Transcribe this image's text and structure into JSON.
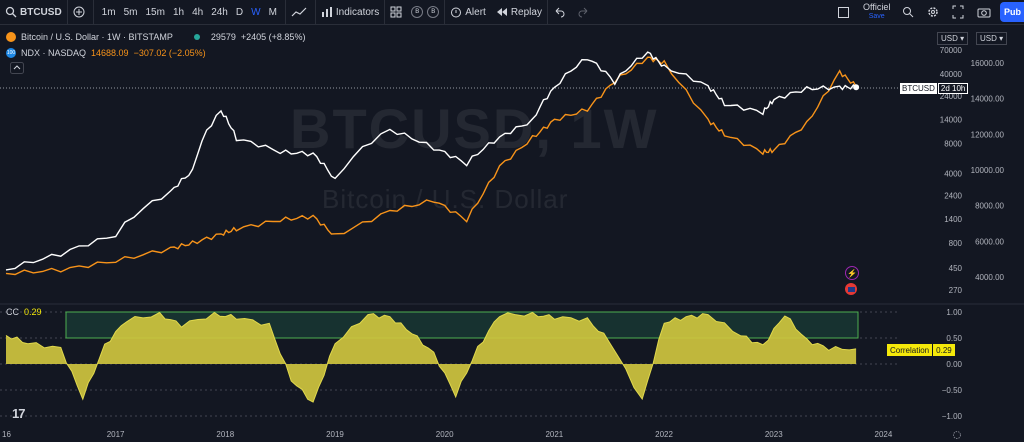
{
  "toolbar": {
    "symbol": "BTCUSD",
    "intervals": [
      "1m",
      "5m",
      "15m",
      "1h",
      "4h",
      "24h",
      "D",
      "W",
      "M"
    ],
    "active_interval": "W",
    "indicators": "Indicators",
    "alert": "Alert",
    "replay": "Replay",
    "layout": "Officiel",
    "layout_status": "Save",
    "publish": "Pub",
    "b_circles": [
      "B",
      "B"
    ]
  },
  "legend": {
    "main_title": "Bitcoin / U.S. Dollar · 1W · BITSTAMP",
    "main_price": "29579",
    "main_change": "+2405 (+8.85%)",
    "ndx_name": "NDX · NASDAQ",
    "ndx_price": "14688.09",
    "ndx_change": "−307.02 (−2.05%)",
    "ndx_badge": "100"
  },
  "watermark": {
    "symbol": "BTCUSD, 1W",
    "name": "Bitcoin / U.S. Dollar"
  },
  "currency": {
    "left": "USD",
    "right": "USD"
  },
  "price_badge": {
    "label": "BTCUSD",
    "countdown": "2d 10h"
  },
  "colors": {
    "btc": "#ffffff",
    "ndx": "#f7931a",
    "corr_fill": "#cfc63f",
    "corr_line": "#e0d84c",
    "band": "#4caf50",
    "accent": "#2962ff",
    "bg": "#131722"
  },
  "indicator": {
    "name": "CC",
    "value": "0.29",
    "tag_label": "Correlation",
    "tag_value": "0.29"
  },
  "chart_data": [
    {
      "type": "line",
      "title": "Bitcoin / U.S. Dollar · 1W · BITSTAMP",
      "x": [
        2016.0,
        2016.5,
        2017.0,
        2017.5,
        2017.7,
        2017.96,
        2018.1,
        2018.5,
        2018.8,
        2019.0,
        2019.5,
        2019.9,
        2020.2,
        2020.5,
        2020.8,
        2021.0,
        2021.3,
        2021.55,
        2021.85,
        2022.0,
        2022.4,
        2022.55,
        2022.9,
        2023.0,
        2023.3,
        2023.6,
        2023.75
      ],
      "series": [
        {
          "name": "BTCUSD",
          "axis": "left",
          "log": true,
          "values": [
            430,
            620,
            960,
            2600,
            4200,
            17000,
            9000,
            6600,
            6300,
            3400,
            11000,
            7200,
            5000,
            9200,
            13500,
            29000,
            58000,
            33000,
            66000,
            47000,
            30000,
            20000,
            16500,
            22000,
            28500,
            29500,
            29579
          ]
        },
        {
          "name": "NDX",
          "axis": "right",
          "values": [
            4200,
            4400,
            4900,
            5600,
            5900,
            6400,
            6700,
            7200,
            7400,
            6300,
            7700,
            8300,
            7200,
            10200,
            11800,
            12800,
            13400,
            15000,
            16300,
            16000,
            12800,
            12000,
            11000,
            11100,
            12600,
            15500,
            14688
          ]
        }
      ],
      "left_axis": {
        "scale": "log",
        "ticks": [
          270,
          450,
          800,
          1400,
          2400,
          4000,
          8000,
          14000,
          24000,
          40000,
          70000
        ]
      },
      "right_axis": {
        "ticks": [
          4000,
          6000,
          8000,
          10000,
          12000,
          14000,
          16000
        ],
        "ylim": [
          3700,
          17000
        ]
      },
      "xlabels": [
        "16",
        "2017",
        "2018",
        "2019",
        "2020",
        "2021",
        "2022",
        "2023",
        "2024"
      ]
    },
    {
      "type": "area",
      "title": "CC",
      "x": [
        2016.0,
        2016.2,
        2016.5,
        2016.7,
        2016.9,
        2017.1,
        2017.4,
        2017.6,
        2017.9,
        2018.1,
        2018.4,
        2018.6,
        2018.8,
        2019.0,
        2019.3,
        2019.5,
        2019.7,
        2019.9,
        2020.1,
        2020.3,
        2020.5,
        2020.8,
        2021.0,
        2021.3,
        2021.5,
        2021.8,
        2022.0,
        2022.2,
        2022.4,
        2022.7,
        2022.9,
        2023.1,
        2023.3,
        2023.5,
        2023.75
      ],
      "values": [
        0.55,
        0.4,
        0.3,
        -0.65,
        0.35,
        0.85,
        0.95,
        0.75,
        0.95,
        0.9,
        0.75,
        -0.3,
        -0.75,
        0.4,
        0.95,
        0.9,
        0.6,
        0.2,
        -0.6,
        0.3,
        0.95,
        0.95,
        0.9,
        0.85,
        0.45,
        -0.7,
        0.8,
        0.9,
        0.95,
        0.55,
        0.35,
        0.95,
        0.45,
        0.3,
        0.29
      ],
      "ylim": [
        -1.0,
        1.0
      ],
      "ticks": [
        1.0,
        0.5,
        0.0,
        -0.5,
        -1.0
      ],
      "band": [
        0.5,
        1.0
      ]
    }
  ]
}
